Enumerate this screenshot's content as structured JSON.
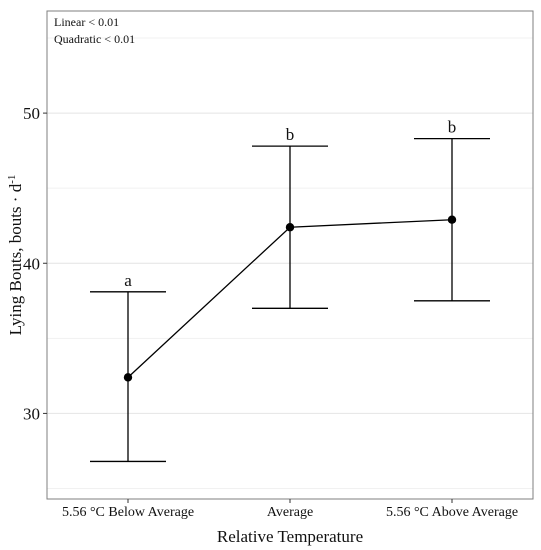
{
  "chart_data": {
    "type": "line",
    "title": "",
    "xlabel": "Relative Temperature",
    "ylabel_main": "Lying Bouts, bouts · d",
    "ylabel_sup": "-1",
    "categories": [
      "5.56 °C Below Average",
      "Average",
      "5.56 °C Above Average"
    ],
    "series": [
      {
        "values": [
          32.4,
          42.4,
          42.9
        ],
        "upper": [
          38.1,
          47.8,
          48.3
        ],
        "lower": [
          26.8,
          37.0,
          37.5
        ],
        "letters": [
          "a",
          "b",
          "b"
        ]
      }
    ],
    "ylim": [
      24.3,
      56.8
    ],
    "yticks": [
      30,
      40,
      50
    ],
    "ytick_labels": [
      "30",
      "40",
      "50"
    ],
    "minor_gridlines": [
      25,
      35,
      45,
      55
    ],
    "annotations": [
      "Linear < 0.01",
      "Quadratic < 0.01"
    ],
    "grid": true,
    "legend": "none"
  },
  "colors": {
    "background": "#ffffff",
    "panel_border": "#7f7f7f",
    "major_grid": "#e4e4e4",
    "minor_grid": "#f1f1f1",
    "line": "#000000",
    "point": "#000000"
  }
}
